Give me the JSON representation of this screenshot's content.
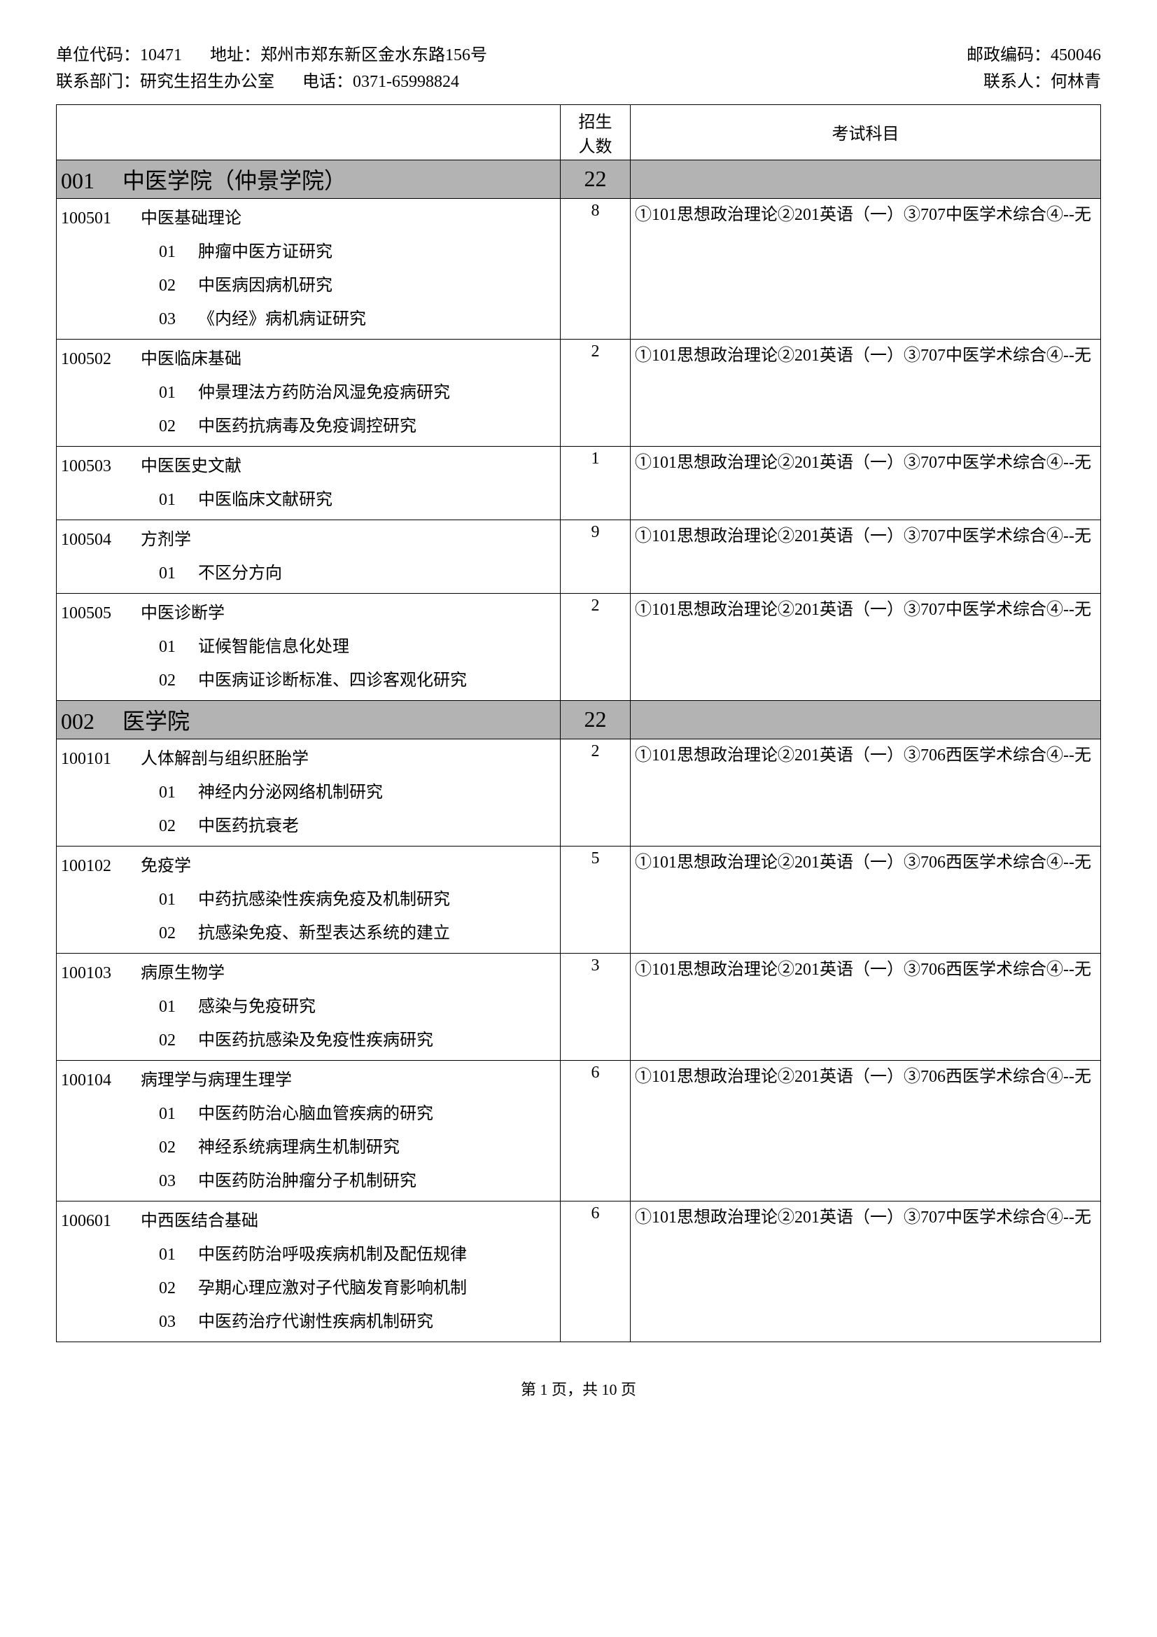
{
  "header": {
    "unit_code_label": "单位代码：",
    "unit_code": "10471",
    "address_label": "地址：",
    "address": "郑州市郑东新区金水东路156号",
    "postcode_label": "邮政编码：",
    "postcode": "450046",
    "dept_label": "联系部门：",
    "dept": "研究生招生办公室",
    "phone_label": "电话：",
    "phone": "0371-65998824",
    "contact_label": "联系人：",
    "contact": "何林青"
  },
  "table_headers": {
    "count": "招生\n人数",
    "subjects": "考试科目"
  },
  "sections": [
    {
      "code": "001",
      "name": "中医学院（仲景学院）",
      "total": "22",
      "majors": [
        {
          "code": "100501",
          "name": "中医基础理论",
          "count": "8",
          "subjects": "①101思想政治理论②201英语（一）③707中医学术综合④--无",
          "directions": [
            {
              "num": "01",
              "name": "肿瘤中医方证研究"
            },
            {
              "num": "02",
              "name": "中医病因病机研究"
            },
            {
              "num": "03",
              "name": "《内经》病机病证研究"
            }
          ]
        },
        {
          "code": "100502",
          "name": "中医临床基础",
          "count": "2",
          "subjects": "①101思想政治理论②201英语（一）③707中医学术综合④--无",
          "directions": [
            {
              "num": "01",
              "name": "仲景理法方药防治风湿免疫病研究"
            },
            {
              "num": "02",
              "name": "中医药抗病毒及免疫调控研究"
            }
          ]
        },
        {
          "code": "100503",
          "name": "中医医史文献",
          "count": "1",
          "subjects": "①101思想政治理论②201英语（一）③707中医学术综合④--无",
          "directions": [
            {
              "num": "01",
              "name": "中医临床文献研究"
            }
          ]
        },
        {
          "code": "100504",
          "name": "方剂学",
          "count": "9",
          "subjects": "①101思想政治理论②201英语（一）③707中医学术综合④--无",
          "directions": [
            {
              "num": "01",
              "name": "不区分方向"
            }
          ]
        },
        {
          "code": "100505",
          "name": "中医诊断学",
          "count": "2",
          "subjects": "①101思想政治理论②201英语（一）③707中医学术综合④--无",
          "directions": [
            {
              "num": "01",
              "name": "证候智能信息化处理"
            },
            {
              "num": "02",
              "name": "中医病证诊断标准、四诊客观化研究"
            }
          ]
        }
      ]
    },
    {
      "code": "002",
      "name": "医学院",
      "total": "22",
      "majors": [
        {
          "code": "100101",
          "name": "人体解剖与组织胚胎学",
          "count": "2",
          "subjects": "①101思想政治理论②201英语（一）③706西医学术综合④--无",
          "directions": [
            {
              "num": "01",
              "name": "神经内分泌网络机制研究"
            },
            {
              "num": "02",
              "name": "中医药抗衰老"
            }
          ]
        },
        {
          "code": "100102",
          "name": "免疫学",
          "count": "5",
          "subjects": "①101思想政治理论②201英语（一）③706西医学术综合④--无",
          "directions": [
            {
              "num": "01",
              "name": "中药抗感染性疾病免疫及机制研究"
            },
            {
              "num": "02",
              "name": "抗感染免疫、新型表达系统的建立"
            }
          ]
        },
        {
          "code": "100103",
          "name": "病原生物学",
          "count": "3",
          "subjects": "①101思想政治理论②201英语（一）③706西医学术综合④--无",
          "directions": [
            {
              "num": "01",
              "name": "感染与免疫研究"
            },
            {
              "num": "02",
              "name": "中医药抗感染及免疫性疾病研究"
            }
          ]
        },
        {
          "code": "100104",
          "name": "病理学与病理生理学",
          "count": "6",
          "subjects": "①101思想政治理论②201英语（一）③706西医学术综合④--无",
          "directions": [
            {
              "num": "01",
              "name": "中医药防治心脑血管疾病的研究"
            },
            {
              "num": "02",
              "name": "神经系统病理病生机制研究"
            },
            {
              "num": "03",
              "name": "中医药防治肿瘤分子机制研究"
            }
          ]
        },
        {
          "code": "100601",
          "name": "中西医结合基础",
          "count": "6",
          "subjects": "①101思想政治理论②201英语（一）③707中医学术综合④--无",
          "directions": [
            {
              "num": "01",
              "name": "中医药防治呼吸疾病机制及配伍规律"
            },
            {
              "num": "02",
              "name": "孕期心理应激对子代脑发育影响机制"
            },
            {
              "num": "03",
              "name": "中医药治疗代谢性疾病机制研究"
            }
          ]
        }
      ]
    }
  ],
  "footer": {
    "page_label": "第 1 页，共 10 页"
  }
}
